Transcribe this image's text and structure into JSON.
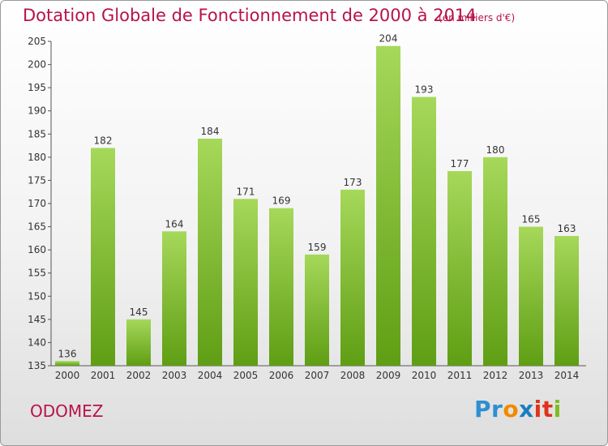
{
  "header": {
    "title": "Dotation Globale de Fonctionnement de 2000 à 2014",
    "unit": "(en milliers d'€)"
  },
  "footer": {
    "commune": "ODOMEZ",
    "logo": {
      "parts": [
        "Pr",
        "o",
        "x",
        "it",
        "i"
      ],
      "colors": [
        "#2f8fd0",
        "#f08a00",
        "#1c7cc2",
        "#e0331b",
        "#7cbd22"
      ]
    }
  },
  "colors": {
    "title": "#b8124b",
    "bar_top": "#a6d85a",
    "bar_bottom": "#5f9e14",
    "grid": "#bbbbbb"
  },
  "chart_data": {
    "type": "bar",
    "categories": [
      "2000",
      "2001",
      "2002",
      "2003",
      "2004",
      "2005",
      "2006",
      "2007",
      "2008",
      "2009",
      "2010",
      "2011",
      "2012",
      "2013",
      "2014"
    ],
    "values": [
      136,
      182,
      145,
      164,
      184,
      171,
      169,
      159,
      173,
      204,
      193,
      177,
      180,
      165,
      163
    ],
    "ylim": [
      135,
      205
    ],
    "yticks": [
      135,
      140,
      145,
      150,
      155,
      160,
      165,
      170,
      175,
      180,
      185,
      190,
      195,
      200,
      205
    ],
    "grid": false
  }
}
